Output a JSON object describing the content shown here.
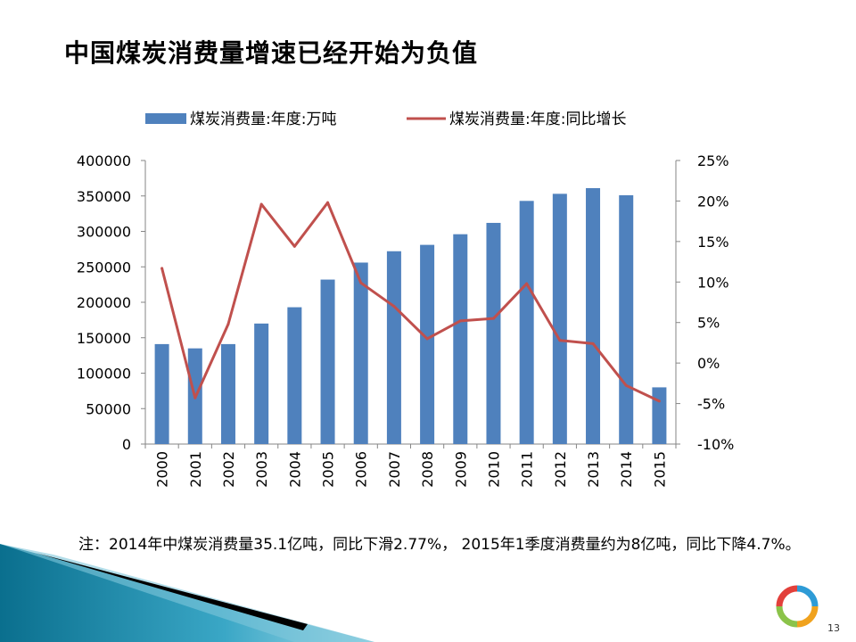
{
  "slide": {
    "title": "中国煤炭消费量增速已经开始为负值",
    "note": "注：2014年中煤炭消费量35.1亿吨，同比下滑2.77%， 2015年1季度消费量约为8亿吨，同比下降4.7%。",
    "page_number": "13"
  },
  "colors": {
    "bar": "#4F81BD",
    "line": "#C0504D",
    "axis": "#868686"
  },
  "chart_data": {
    "type": "bar+line",
    "categories": [
      "2000",
      "2001",
      "2002",
      "2003",
      "2004",
      "2005",
      "2006",
      "2007",
      "2008",
      "2009",
      "2010",
      "2011",
      "2012",
      "2013",
      "2014",
      "2015"
    ],
    "series": [
      {
        "name": "煤炭消费量:年度:万吨",
        "type": "bar",
        "axis": "left",
        "values": [
          141000,
          135000,
          141000,
          170000,
          193000,
          232000,
          256000,
          272000,
          281000,
          296000,
          312000,
          343000,
          353000,
          361000,
          351000,
          80000
        ]
      },
      {
        "name": "煤炭消费量:年度:同比增长",
        "type": "line",
        "axis": "right",
        "values": [
          11.7,
          -4.3,
          4.8,
          19.6,
          14.4,
          19.8,
          9.9,
          7.0,
          3.0,
          5.2,
          5.5,
          9.8,
          2.8,
          2.4,
          -2.77,
          -4.7
        ]
      }
    ],
    "y_left": {
      "ylim": [
        0,
        400000
      ],
      "ticks": [
        "0",
        "50000",
        "100000",
        "150000",
        "200000",
        "250000",
        "300000",
        "350000",
        "400000"
      ]
    },
    "y_right": {
      "ylim": [
        -10,
        25
      ],
      "ticks": [
        "-10%",
        "-5%",
        "0%",
        "5%",
        "10%",
        "15%",
        "20%",
        "25%"
      ]
    },
    "legend_position": "top",
    "grid": false
  }
}
